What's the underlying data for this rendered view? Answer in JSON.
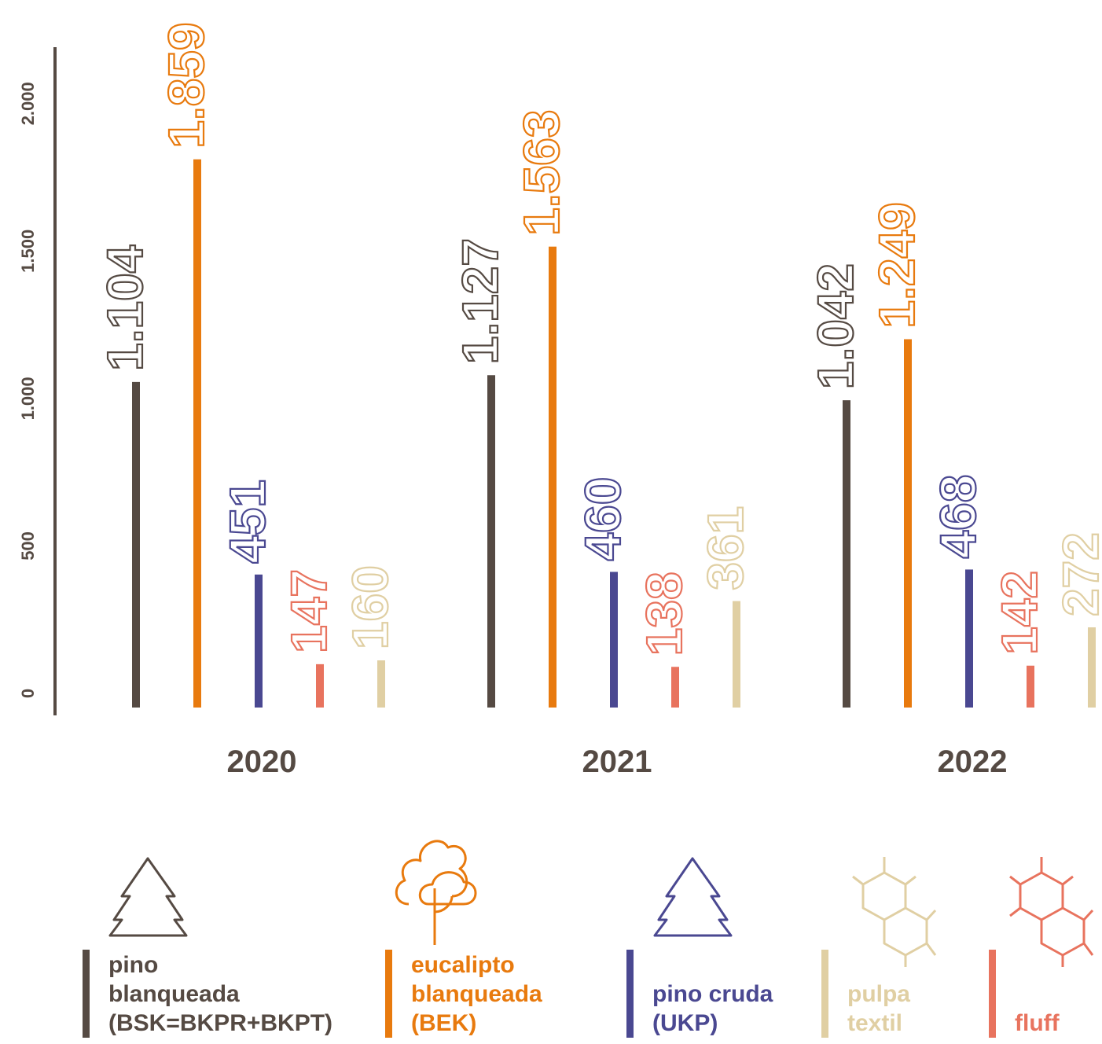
{
  "chart_data": {
    "type": "bar",
    "categories": [
      "2020",
      "2021",
      "2022"
    ],
    "series": [
      {
        "name": "pino blanqueada (BSK=BKPR+BKPT)",
        "color": "#554a43",
        "values": [
          1104,
          1127,
          1042
        ],
        "value_labels": [
          "1.104",
          "1.127",
          "1.042"
        ]
      },
      {
        "name": "eucalipto blanqueada (BEK)",
        "color": "#e87a0e",
        "values": [
          1859,
          1563,
          1249
        ],
        "value_labels": [
          "1.859",
          "1.563",
          "1.249"
        ]
      },
      {
        "name": "pino cruda (UKP)",
        "color": "#4a4891",
        "values": [
          451,
          460,
          468
        ]
      },
      {
        "name": "fluff",
        "color": "#e8735e",
        "values": [
          147,
          138,
          142
        ]
      },
      {
        "name": "pulpa textil",
        "color": "#e0cfa3",
        "values": [
          160,
          361,
          272
        ]
      }
    ],
    "legend_order": [
      0,
      1,
      2,
      4,
      3
    ],
    "ylim": [
      0,
      2250
    ],
    "yticks": [
      0,
      500,
      {
        "value": 1000,
        "label": "1.000"
      },
      {
        "value": 1500,
        "label": "1.500"
      },
      {
        "value": 2000,
        "label": "2.000"
      }
    ]
  }
}
